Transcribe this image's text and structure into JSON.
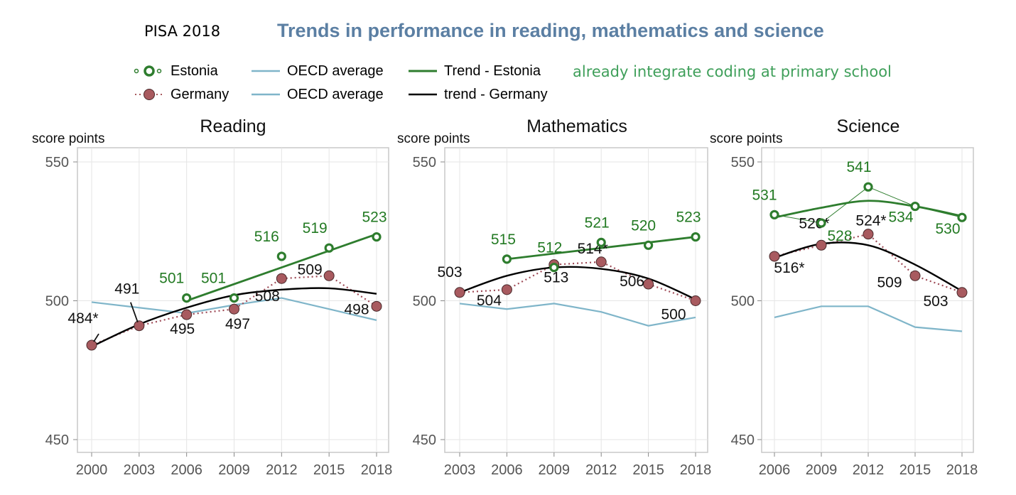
{
  "header": {
    "label": "PISA 2018",
    "title": "Trends in performance in reading, mathematics and science",
    "note": "already integrate coding at primary school"
  },
  "legend": [
    {
      "label": "Estonia",
      "kind": "estonia-marker"
    },
    {
      "label": "OECD average",
      "kind": "oecd-line"
    },
    {
      "label": "Trend - Estonia",
      "kind": "estonia-trend"
    },
    {
      "label": "Germany",
      "kind": "germany-marker"
    },
    {
      "label": "OECD average",
      "kind": "oecd-line"
    },
    {
      "label": "trend - Germany",
      "kind": "germany-trend"
    }
  ],
  "colors": {
    "estonia": "#2e7d2e",
    "estonia_label": "#237a23",
    "germany": "#a85a5f",
    "germany_dots": "#9e4a56",
    "oecd": "#7fb5c9",
    "trend_germany": "#000000",
    "grid": "#e5e5e5",
    "axis_frame": "#c8c8c8",
    "title_blue": "#5b7fa3",
    "note_green": "#3f9f5a"
  },
  "chart_data": [
    {
      "type": "line",
      "title": "Reading",
      "ylabel": "score points",
      "ylim": [
        450,
        550
      ],
      "yticks": [
        450,
        500,
        550
      ],
      "x": [
        2000,
        2003,
        2006,
        2009,
        2012,
        2015,
        2018
      ],
      "series": [
        {
          "name": "Estonia",
          "x": [
            2006,
            2009,
            2012,
            2015,
            2018
          ],
          "values": [
            501,
            501,
            516,
            519,
            523
          ],
          "labels": [
            "501",
            "501",
            "516",
            "519",
            "523"
          ]
        },
        {
          "name": "Germany",
          "x": [
            2000,
            2003,
            2006,
            2009,
            2012,
            2015,
            2018
          ],
          "values": [
            484,
            491,
            495,
            497,
            508,
            509,
            498
          ],
          "labels": [
            "484*",
            "491",
            "495",
            "497",
            "508",
            "509",
            "498"
          ]
        },
        {
          "name": "OECD average",
          "x": [
            2000,
            2003,
            2006,
            2009,
            2012,
            2015,
            2018
          ],
          "values": [
            499.5,
            497.5,
            495.5,
            498.5,
            501,
            497,
            493
          ]
        },
        {
          "name": "Trend - Estonia",
          "x": [
            2006,
            2018
          ],
          "values": [
            500,
            524
          ]
        },
        {
          "name": "trend - Germany",
          "x": [
            2000,
            2003,
            2006,
            2009,
            2012,
            2015,
            2018
          ],
          "values": [
            483.5,
            491.5,
            497.5,
            502,
            504,
            504.5,
            502.5
          ]
        }
      ]
    },
    {
      "type": "line",
      "title": "Mathematics",
      "ylabel": "score points",
      "ylim": [
        450,
        550
      ],
      "yticks": [
        450,
        500,
        550
      ],
      "x": [
        2003,
        2006,
        2009,
        2012,
        2015,
        2018
      ],
      "series": [
        {
          "name": "Estonia",
          "x": [
            2006,
            2009,
            2012,
            2015,
            2018
          ],
          "values": [
            515,
            512,
            521,
            520,
            523
          ],
          "labels": [
            "515",
            "512",
            "521",
            "520",
            "523"
          ]
        },
        {
          "name": "Germany",
          "x": [
            2003,
            2006,
            2009,
            2012,
            2015,
            2018
          ],
          "values": [
            503,
            504,
            513,
            514,
            506,
            500
          ],
          "labels": [
            "503",
            "504",
            "513",
            "514*",
            "506",
            "500"
          ]
        },
        {
          "name": "OECD average",
          "x": [
            2003,
            2006,
            2009,
            2012,
            2015,
            2018
          ],
          "values": [
            499,
            497,
            499,
            496,
            491,
            494
          ]
        },
        {
          "name": "Trend - Estonia",
          "x": [
            2006,
            2018
          ],
          "values": [
            515,
            523
          ]
        },
        {
          "name": "trend - Germany",
          "x": [
            2003,
            2006,
            2009,
            2012,
            2015,
            2018
          ],
          "values": [
            503,
            509,
            512,
            511.5,
            508,
            500.5
          ]
        }
      ]
    },
    {
      "type": "line",
      "title": "Science",
      "ylabel": "score points",
      "ylim": [
        450,
        550
      ],
      "yticks": [
        450,
        500,
        550
      ],
      "x": [
        2006,
        2009,
        2012,
        2015,
        2018
      ],
      "series": [
        {
          "name": "Estonia",
          "x": [
            2006,
            2009,
            2012,
            2015,
            2018
          ],
          "values": [
            531,
            528,
            541,
            534,
            530
          ],
          "labels": [
            "531",
            "528",
            "541",
            "534",
            "530"
          ]
        },
        {
          "name": "Germany",
          "x": [
            2006,
            2009,
            2012,
            2015,
            2018
          ],
          "values": [
            516,
            520,
            524,
            509,
            503
          ],
          "labels": [
            "516*",
            "520*",
            "524*",
            "509",
            "503"
          ]
        },
        {
          "name": "OECD average",
          "x": [
            2006,
            2009,
            2012,
            2015,
            2018
          ],
          "values": [
            494,
            498,
            498,
            490.5,
            489
          ]
        },
        {
          "name": "Trend - Estonia",
          "x": [
            2006,
            2009,
            2012,
            2015,
            2018
          ],
          "values": [
            530,
            533.5,
            536,
            534,
            530.5
          ]
        },
        {
          "name": "trend - Germany",
          "x": [
            2006,
            2009,
            2012,
            2015,
            2018
          ],
          "values": [
            515.5,
            520.5,
            520,
            513,
            503.5
          ]
        }
      ]
    }
  ]
}
